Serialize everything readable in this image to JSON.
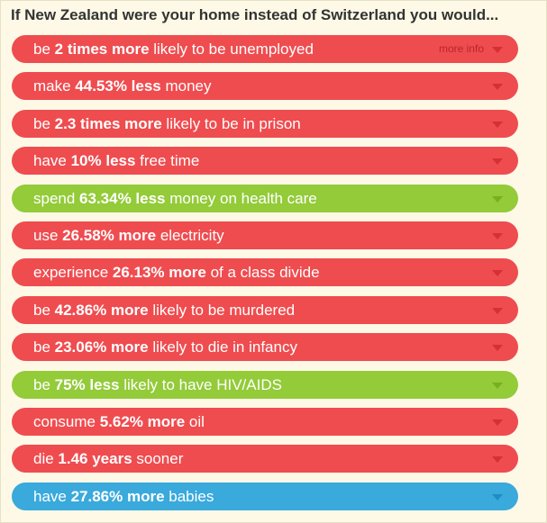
{
  "title": "If New Zealand were your home instead of Switzerland you would...",
  "more_info_label": "more info",
  "colors": {
    "negative": "#ef4c4f",
    "positive": "#93cb39",
    "neutral": "#3aa9dc",
    "background": "#fdf9e6"
  },
  "items": [
    {
      "pre": "be ",
      "bold": "2 times more",
      "post": " likely to be unemployed",
      "tone": "red",
      "more_info": true,
      "icon": "chevron-down-icon"
    },
    {
      "pre": "make ",
      "bold": "44.53% less",
      "post": " money",
      "tone": "red",
      "icon": "chevron-down-icon"
    },
    {
      "pre": "be ",
      "bold": "2.3 times more",
      "post": " likely to be in prison",
      "tone": "red",
      "icon": "chevron-down-icon"
    },
    {
      "pre": "have ",
      "bold": "10% less",
      "post": " free time",
      "tone": "red",
      "icon": "chevron-down-icon"
    },
    {
      "pre": "spend ",
      "bold": "63.34% less",
      "post": " money on health care",
      "tone": "green",
      "icon": "chevron-down-icon"
    },
    {
      "pre": "use ",
      "bold": "26.58% more",
      "post": " electricity",
      "tone": "red",
      "icon": "chevron-down-icon"
    },
    {
      "pre": "experience ",
      "bold": "26.13% more",
      "post": " of a class divide",
      "tone": "red",
      "icon": "chevron-down-icon"
    },
    {
      "pre": "be ",
      "bold": "42.86% more",
      "post": " likely to be murdered",
      "tone": "red",
      "icon": "chevron-down-icon"
    },
    {
      "pre": "be ",
      "bold": "23.06% more",
      "post": " likely to die in infancy",
      "tone": "red",
      "icon": "chevron-down-icon"
    },
    {
      "pre": "be ",
      "bold": "75% less",
      "post": " likely to have HIV/AIDS",
      "tone": "green",
      "icon": "chevron-down-icon"
    },
    {
      "pre": "consume ",
      "bold": "5.62% more",
      "post": " oil",
      "tone": "red",
      "icon": "chevron-down-icon"
    },
    {
      "pre": "die ",
      "bold": "1.46 years",
      "post": " sooner",
      "tone": "red",
      "icon": "chevron-down-icon"
    },
    {
      "pre": "have ",
      "bold": "27.86% more",
      "post": " babies",
      "tone": "blue",
      "icon": "chevron-down-icon"
    }
  ]
}
